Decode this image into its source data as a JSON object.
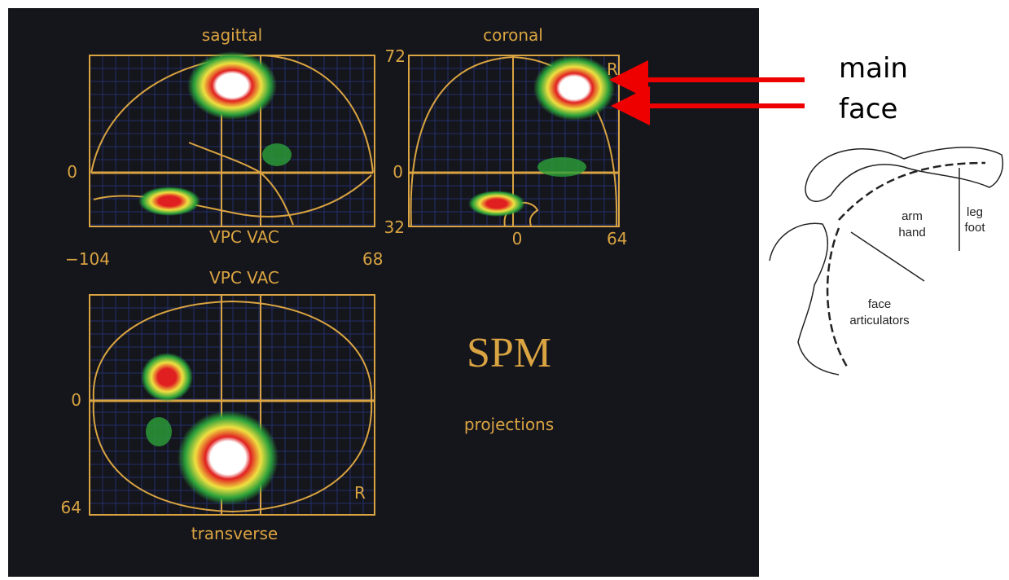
{
  "sagittal": {
    "title": "sagittal",
    "y_top": "0",
    "label_bottom": "VPC VAC",
    "x_left": "−104",
    "x_right": "68"
  },
  "coronal": {
    "title": "coronal",
    "y_top": "72",
    "corner": "R",
    "y_mid": "0",
    "y_bottom": "32",
    "x_mid": "0",
    "x_right": "64"
  },
  "transverse": {
    "label_top": "VPC VAC",
    "y_mid": "0",
    "y_bottom": "64",
    "corner": "R",
    "title": "transverse"
  },
  "center": {
    "title": "SPM",
    "subtitle": "projections"
  },
  "annotations": {
    "arrow_1": "main",
    "arrow_2": "face"
  },
  "homunculus": {
    "region_1": "arm",
    "region_1b": "hand",
    "region_2": "leg",
    "region_2b": "foot",
    "region_3": "face",
    "region_3b": "articulators"
  }
}
